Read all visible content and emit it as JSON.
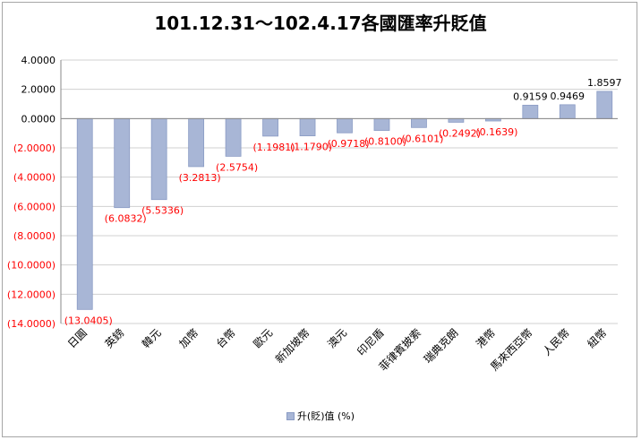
{
  "chart_data": {
    "type": "bar",
    "title": "101.12.31～102.4.17各國匯率升貶值",
    "categories": [
      "日圓",
      "英鎊",
      "韓元",
      "加幣",
      "台幣",
      "歐元",
      "新加坡幣",
      "澳元",
      "印尼盾",
      "菲律賓披索",
      "瑞典克朗",
      "港幣",
      "馬來西亞幣",
      "人民幣",
      "紐幣"
    ],
    "series": [
      {
        "name": "升(貶)值 (%)",
        "values": [
          -13.0405,
          -6.0832,
          -5.5336,
          -3.2813,
          -2.5754,
          -1.1981,
          -1.179,
          -0.9718,
          -0.81,
          -0.6101,
          -0.2492,
          -0.1639,
          0.9159,
          0.9469,
          1.8597
        ]
      }
    ],
    "data_labels": [
      "(13.0405)",
      "(6.0832)",
      "(5.5336)",
      "(3.2813)",
      "(2.5754)",
      "(1.1981)",
      "(1.1790)",
      "(0.9718)",
      "(0.8100)",
      "(0.6101)",
      "(0.2492)",
      "(0.1639)",
      "0.9159",
      "0.9469",
      "1.8597"
    ],
    "ylim": [
      -14,
      4
    ],
    "yticks": [
      4,
      2,
      0,
      -2,
      -4,
      -6,
      -8,
      -10,
      -12,
      -14
    ],
    "ytick_labels": [
      "4.0000",
      "2.0000",
      "0.0000",
      "(2.0000)",
      "(4.0000)",
      "(6.0000)",
      "(8.0000)",
      "(10.0000)",
      "(12.0000)",
      "(14.0000)"
    ],
    "grid": true,
    "legend_position": "bottom",
    "colors": {
      "bar": "#a8b6d6",
      "bar_edge": "#8a9bc4",
      "negative_text": "#ff0000",
      "positive_text": "#000000",
      "grid": "#d0d0d0",
      "axis": "#888888"
    }
  }
}
